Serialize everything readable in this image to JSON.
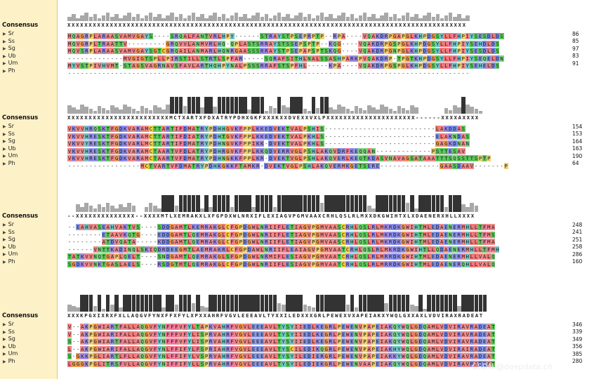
{
  "consensus_label": "Consensus",
  "species": [
    "Sr",
    "Ss",
    "Sg",
    "Ub",
    "Um",
    "Ph"
  ],
  "colors": {
    "A": "#f08a8a",
    "R": "#9b8fe8",
    "N": "#7dd47d",
    "D": "#7a8ae8",
    "C": "#f0d040",
    "Q": "#7dd47d",
    "E": "#8a9ae8",
    "G": "#f09a50",
    "H": "#70c8c8",
    "I": "#f08a8a",
    "L": "#f07a7a",
    "K": "#a08ce8",
    "M": "#f08a8a",
    "F": "#f07a9a",
    "P": "#f0d070",
    "S": "#5cc85c",
    "T": "#5cc85c",
    "W": "#f08aa0",
    "Y": "#70c8c8",
    "V": "#f08a8a"
  },
  "blocks": [
    {
      "consensus": "XXXXXXXXXXXXXXXXXXXXXXXXXXXXXXXXXXXXXXXXXXXXXXXXXXXXXXXXXXXXXXXXXXXXXXXXXXXXXXXXXXXXXXXXXXXXXX",
      "rows": [
        {
          "seq": "MQAGRPLARAASVAMVGAYS----SRQALFANTVRLHPY------STRAYSTPSEPRPTP--RPA----VQAKDRPGAPGLKHPDGSYLLFHPIYSESDLDS",
          "end": "86"
        },
        {
          "seq": "MQVGRPLTRAATTV---------GRQVVLANMVRLHQ-QPLASTSRRAYSTSSEPSPTP--KQG----VQAKDRPGSPGLKHPDGSYLLFHPIYSEHDLDS",
          "end": "85"
        },
        {
          "seq": "MQVSRPLARAASVAMVGAYSGTCGRQAILANMARLHQNRGAASSSRRAYSTPSEPAPSPTSKQG----VQAKDRPGNPGLKHPDGSYLLFHPIYSESDLDS",
          "end": "97"
        },
        {
          "seq": "-------------MVGIGTSPLLPIRSTILLSTRTLSPFAR-----SQRAFSITHLNALSSASHPARKPVQAKDRP-TPGTKHPDGSYLLFHPIYSEQELDN",
          "end": "83"
        },
        {
          "seq": "MYVSTPIVHVMT-STAGSVAGRNAVSFAVLARTHQHPYNALPSSSRRAFSTSPFHL-----KPA----VQAKDRPGSPGLKHPDGSYLLFHPIYSEHELDS",
          "end": "91"
        },
        {
          "seq": "----------------------------------------------------------------------------------------------",
          "end": ""
        }
      ]
    },
    {
      "consensus": "XXXXXXXXXXXXXXXXXXXXXXXXMCTXARTXFDXATRYPDHXGKFXXXKXXDVEXXVXLPXXXXXXXXXXXXXXXXXXXXX------XXXXAXXXX",
      "rows": [
        {
          "seq": "VKVVHRQSKTFGDKVARAMCTTARTIFDMATRYPDHHGVKFPPLKKEDVEKTVALPSHIS--------------------------LAKDDAS",
          "end": "154"
        },
        {
          "seq": "VKVVHRESKTFGDKVARAMCTTARTIFDIATRYPDHTGVKFPPLKKEDVEKTVALPKHLS--------------------------ELAKNDAS",
          "end": "153"
        },
        {
          "seq": "VKVVYRESKTFGDKVARLMCTTARTIFDMATRYPDHNGVKFPPIKK-DVEKTVALPKHLS--------------------------GAGKDNAN",
          "end": "164"
        },
        {
          "seq": "VKVVHRESKTFGDKVARAMCTAARTVFDLATRYPDHRGVKFPPLKKQDVERRVGLPSHLAKQVDRFKEQQAN-------------PSTTESAV",
          "end": "163"
        },
        {
          "seq": "VKVVHRESKTFGDKVARAMCTAARTVFDMATRYPDHNGKKFPPLKR-DVEKTVGLPSHLAKQVERLKEQTKDASVNAVAGSATAAATTTSQSSTTSPTP",
          "end": "190"
        },
        {
          "seq": "-----------------MCTVARTVFDMATRYPDHKGKKFTAMKR-DVEKTVGLPSHLAKQVERMKGETSERE--------------GAASDAAV-------P",
          "end": "64"
        }
      ]
    },
    {
      "consensus": "--XXXXXXXXXXXXXX--XXXXMTLXEMRAKXLXFGPDXWLNRXIFLEXIAGVPGMVAAXCRHLQSLRLMXXDKGWIHTXLXDAENERXHLLXXXX",
      "rows": [
        {
          "seq": "--EAHVASEAHVAKTVS----SDDGAMTLKEMRAKGLCFGPDGWLNRIIFLETIAGVPGMVAASCRHLQSLRLMKRDKGWIHTMLEDAENERMHLLTFMA",
          "end": "248"
        },
        {
          "seq": "--------ETAAVKQTG----EDDGAMTLQEMRAKGLCFGPDGWLNRIIFLETIAGVPGMVAASCRHLQSLRLMKRDKGWIHTMLEDAENERMHLLTFMS",
          "end": "241"
        },
        {
          "seq": "--------ATDVQATA-----KDDGAMTLQEMRAKGLCFGPDGWLNRIIFLETIAGVPGMVAASCRHLQSLRLMKRDKGWIHTMLEDAENERMHLLTFMA",
          "end": "251"
        },
        {
          "seq": "------VNTTKADINQLSKIQDRDEEGMTLAEMRAKRLCFGPDAWLNRIIFLEAIAGVPGMVAATCRHLQSLRLMKRDKGWIHTLLQDAENERMHLLTFMH",
          "end": "258"
        },
        {
          "seq": "TATKVVNQTGAPLQELT----SNDGAMTLQEMRAKGLSFGPDGWLNRMIFLESIAGVPGMVAATCRHLQSLRLMRRDKGWIHTMLEDAENERMHLLVALQ",
          "end": "286"
        },
        {
          "seq": "SGDKVVNKTGASLAELS----RSDGTMTLQEMRAKGLCFGPDGWLNRIIFLESIAGVPGMVAATCRHLQSLRLMRRDKGWIHTMLEDAENERQHLLVALQ",
          "end": "160"
        }
      ]
    },
    {
      "consensus": "XXXKPGXIXRXFXLLAQGVFYNXFFXFYLXPXXAHRFVGVLEEEAVLTYXXILEDXXXGRLPEWEXVXAPEIAKXYWQLGXXAXLVDVIRAXRADEAT",
      "rows": [
        {
          "seq": "V--AKPGWIARTFALLAQGVFYNFFFVFYLTAPKVAHRFVGVLEEEAVLTYSYIIEDLKEGRLPEWENVPAPEIAKQYWQLGDQAMLVDVIRAVRADEAT",
          "end": "346"
        },
        {
          "seq": "V--AKPGWIARIFALLAQGVFYNFFFVFYLISPRVAHRFVGVLEEEAVLTYSYIIEDLKEGRLPEWENVPAPEIAKQYWQLGDQAMLVDVIRAVRADEAT",
          "end": "339"
        },
        {
          "seq": "S--AKPGWIARTFALLAQGVFYNFFFVFYLISPRVAHRFVGVLEEEAVLTYSYIIEDLKEGRLPEWENVPAPEIAKQYWQLGDQAMLVDVIRAVRADEAT",
          "end": "349"
        },
        {
          "seq": "L--AKPGWIARIFALLAQGVFYNLFFIFYLFSPRIAHRFVGVLEEEAVLTYSCILEDIKQGRLPEWENVPAPEIAKHYWQLGDQAMLVDVIRAIRADEAT",
          "end": "356"
        },
        {
          "seq": "S-GKKPGLIARTLFLLAQGVFYNLFFIFYLVSPRVAHRFVGVLEEEAVLTYSYILEDIERGRLPEWENVPAPEIAKKYWQLGDQAMLVDVIRAVRADEAT",
          "end": "385"
        },
        {
          "seq": "LGGGKPGLITRSFVLLAQGVFYNIFFIFYLLSPRVAHRFVGVLEEEAVLTYSYILEDIEKGRLPEWENVAAPEIAKQYWQLGDQAMLVDVIRAVRADEAT",
          "end": "280"
        }
      ]
    }
  ],
  "watermark": "CSDN @deepdata.cn"
}
